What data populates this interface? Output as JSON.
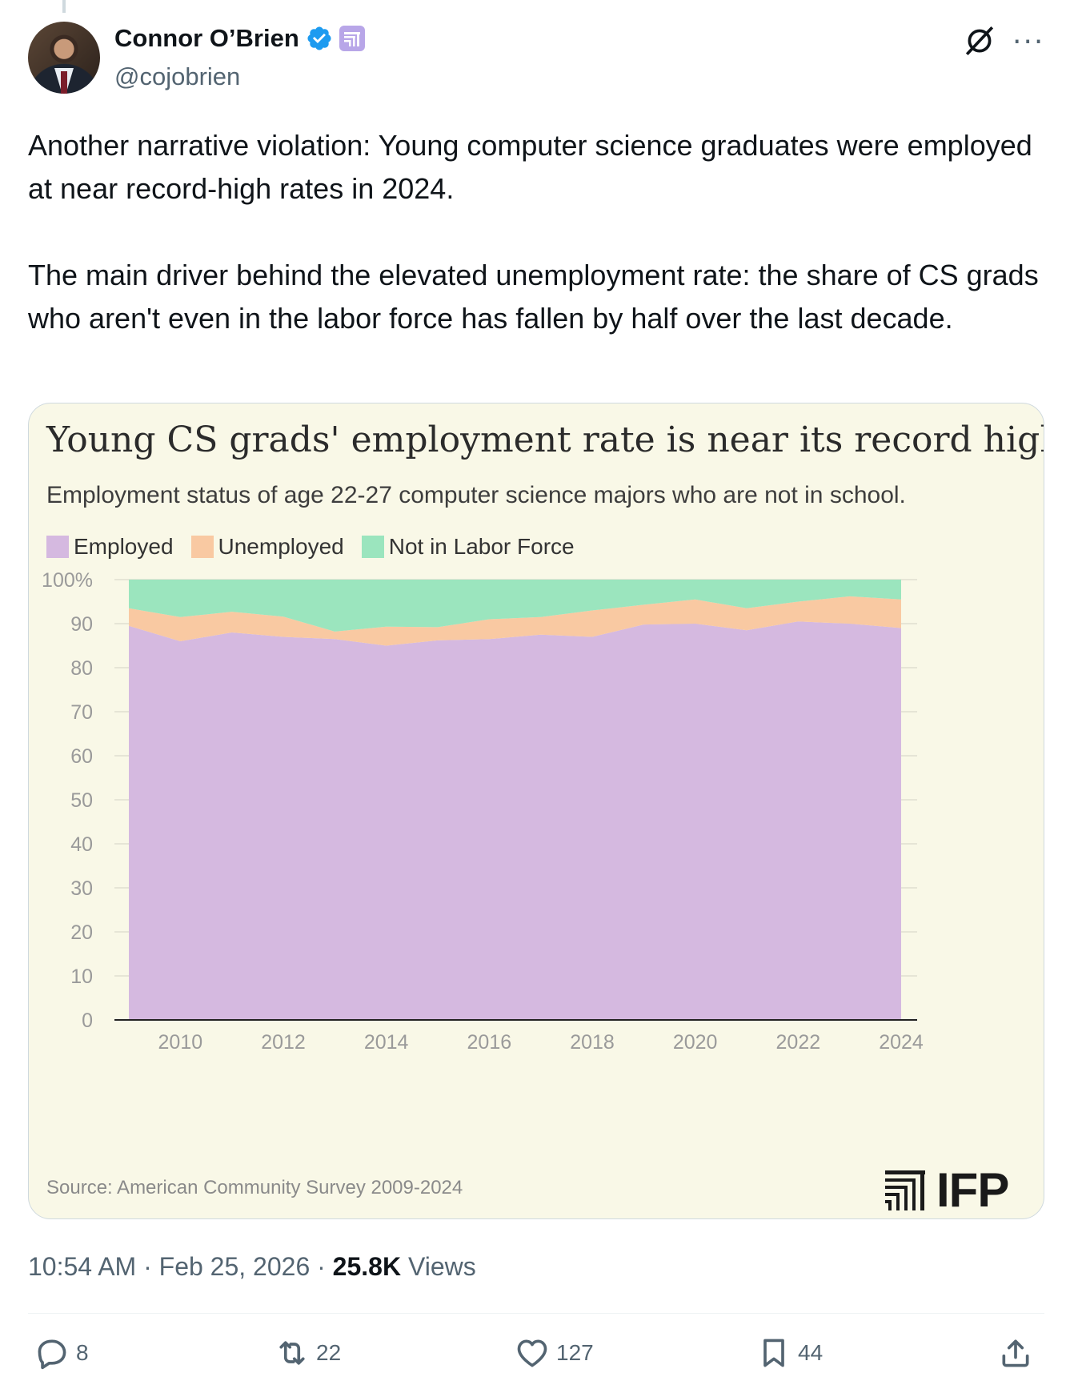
{
  "author": {
    "display_name": "Connor O’Brien",
    "handle": "@cojobrien"
  },
  "tweet": {
    "text": "Another narrative violation: Young computer science graduates were employed at near record-high rates in 2024.\n\nThe main driver behind the elevated unemployment rate: the share of CS grads who aren't even in the labor force has fallen by half over the last decade."
  },
  "card": {
    "source": "Source: American Community Survey 2009-2024",
    "logo_text": "IFP"
  },
  "chart_data": {
    "type": "area",
    "stacked": true,
    "title": "Young CS grads' employment rate is near its record high",
    "subtitle": "Employment status of age 22-27 computer science majors who are not in school.",
    "x": [
      2009,
      2010,
      2011,
      2012,
      2013,
      2014,
      2015,
      2016,
      2017,
      2018,
      2019,
      2020,
      2021,
      2022,
      2023,
      2024
    ],
    "series": [
      {
        "name": "Employed",
        "color": "#d5b9e0",
        "values": [
          89.5,
          86,
          88,
          87,
          86.5,
          85,
          86.2,
          86.5,
          87.5,
          87,
          89.8,
          90,
          88.5,
          90.5,
          90,
          89
        ]
      },
      {
        "name": "Unemployed",
        "color": "#f9c9a2",
        "values": [
          4,
          5.5,
          4.7,
          4.6,
          1.7,
          4.3,
          3,
          4.5,
          4,
          6,
          4.5,
          5.5,
          5,
          4.5,
          6.2,
          6.5
        ]
      },
      {
        "name": "Not in Labor Force",
        "color": "#9be5be",
        "values": [
          6.5,
          8.5,
          7.3,
          8.4,
          11.8,
          10.7,
          10.8,
          9,
          8.5,
          7,
          5.7,
          4.5,
          6.5,
          5,
          3.8,
          4.5
        ]
      }
    ],
    "yticks": [
      "100%",
      "90",
      "80",
      "70",
      "60",
      "50",
      "40",
      "30",
      "20",
      "10",
      "0"
    ],
    "xticks": [
      "2010",
      "2012",
      "2014",
      "2016",
      "2018",
      "2020",
      "2022",
      "2024"
    ],
    "ylim": [
      0,
      100
    ],
    "xlim": [
      2009,
      2024
    ],
    "legend": "top-left"
  },
  "meta": {
    "time": "10:54 AM",
    "separator": "·",
    "date": "Feb 25, 2026",
    "views_count": "25.8K",
    "views_label": "Views"
  },
  "actions": {
    "replies": "8",
    "reposts": "22",
    "likes": "127",
    "bookmarks": "44"
  },
  "icons": [
    "verified-badge-icon",
    "affiliate-badge-icon",
    "grok-icon",
    "more-icon",
    "reply-icon",
    "repost-icon",
    "like-icon",
    "bookmark-icon",
    "share-icon",
    "ifp-logo-icon"
  ],
  "colors": {
    "card_bg": "#f9f8e7",
    "verified_blue": "#1d9bf0",
    "muted": "#536471"
  }
}
